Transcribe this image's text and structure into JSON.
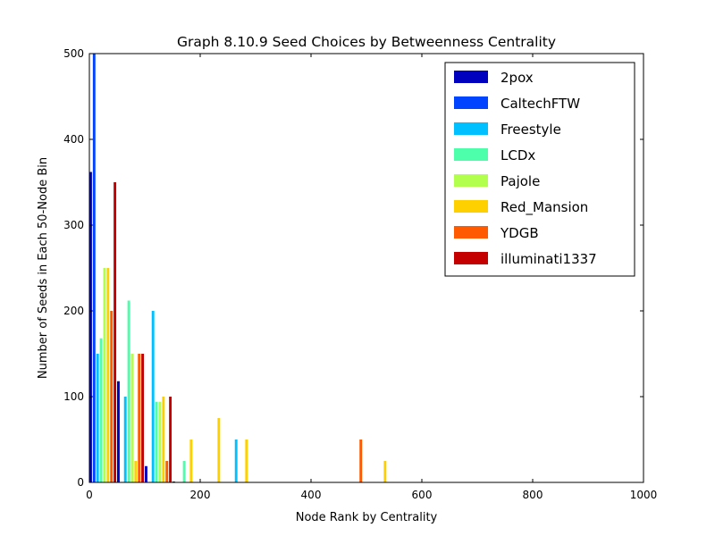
{
  "chart_data": {
    "type": "bar",
    "title": "Graph 8.10.9 Seed Choices by Betweenness Centrality",
    "xlabel": "Node Rank by Centrality",
    "ylabel": "Number of Seeds in Each 50-Node Bin",
    "xlim": [
      0,
      1000
    ],
    "ylim": [
      0,
      500
    ],
    "xticks": [
      "0",
      "200",
      "400",
      "600",
      "800",
      "1000"
    ],
    "yticks": [
      "0",
      "100",
      "200",
      "300",
      "400",
      "500"
    ],
    "bin_width": 50,
    "legend_position": "top-right",
    "grid": false,
    "series": [
      {
        "name": "2pox",
        "color": "#0000bf",
        "bins": [
          {
            "start": 0,
            "value": 362
          },
          {
            "start": 50,
            "value": 118
          },
          {
            "start": 100,
            "value": 19
          },
          {
            "start": 150,
            "value": 1
          }
        ]
      },
      {
        "name": "CaltechFTW",
        "color": "#0044ff",
        "bins": [
          {
            "start": 0,
            "value": 500
          }
        ]
      },
      {
        "name": "Freestyle",
        "color": "#00c0ff",
        "bins": [
          {
            "start": 0,
            "value": 150
          },
          {
            "start": 50,
            "value": 100
          },
          {
            "start": 100,
            "value": 200
          },
          {
            "start": 250,
            "value": 50
          }
        ]
      },
      {
        "name": "LCDx",
        "color": "#4dffaa",
        "bins": [
          {
            "start": 0,
            "value": 168
          },
          {
            "start": 50,
            "value": 212
          },
          {
            "start": 100,
            "value": 94
          },
          {
            "start": 150,
            "value": 25
          }
        ]
      },
      {
        "name": "Pajole",
        "color": "#b3ff4d",
        "bins": [
          {
            "start": 0,
            "value": 250
          },
          {
            "start": 50,
            "value": 150
          },
          {
            "start": 100,
            "value": 94
          }
        ]
      },
      {
        "name": "Red_Mansion",
        "color": "#ffd000",
        "bins": [
          {
            "start": 0,
            "value": 250
          },
          {
            "start": 50,
            "value": 25
          },
          {
            "start": 100,
            "value": 100
          },
          {
            "start": 150,
            "value": 50
          },
          {
            "start": 200,
            "value": 75
          },
          {
            "start": 250,
            "value": 50
          },
          {
            "start": 500,
            "value": 25
          }
        ]
      },
      {
        "name": "YDGB",
        "color": "#ff5a00",
        "bins": [
          {
            "start": 0,
            "value": 200
          },
          {
            "start": 50,
            "value": 150
          },
          {
            "start": 100,
            "value": 25
          },
          {
            "start": 450,
            "value": 50
          }
        ]
      },
      {
        "name": "illuminati1337",
        "color": "#c40000",
        "bins": [
          {
            "start": 0,
            "value": 350
          },
          {
            "start": 50,
            "value": 150
          },
          {
            "start": 100,
            "value": 100
          }
        ]
      }
    ]
  }
}
